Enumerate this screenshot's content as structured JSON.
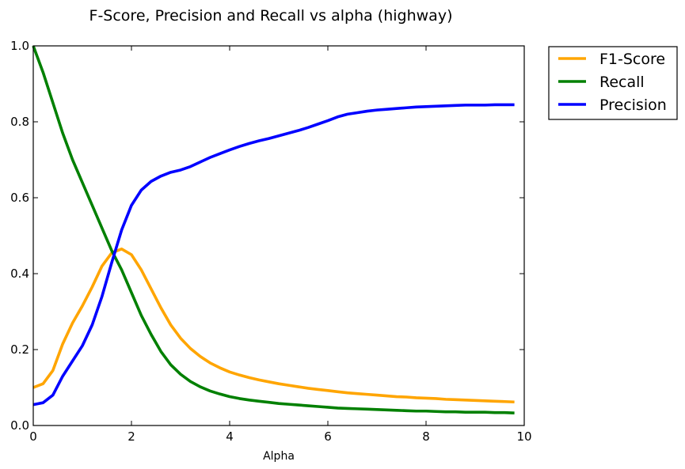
{
  "chart_data": {
    "type": "line",
    "title": "F-Score, Precision and Recall vs alpha (highway)",
    "xlabel": "Alpha",
    "ylabel": "",
    "xlim": [
      0,
      10
    ],
    "ylim": [
      0,
      1.0
    ],
    "xticks": [
      "0",
      "2",
      "4",
      "6",
      "8",
      "10"
    ],
    "yticks": [
      "0.0",
      "0.2",
      "0.4",
      "0.6",
      "0.8",
      "1.0"
    ],
    "grid": false,
    "legend_position": "outside-top-right",
    "x": [
      0.0,
      0.2,
      0.4,
      0.6,
      0.8,
      1.0,
      1.2,
      1.4,
      1.6,
      1.8,
      2.0,
      2.2,
      2.4,
      2.6,
      2.8,
      3.0,
      3.2,
      3.4,
      3.6,
      3.8,
      4.0,
      4.2,
      4.4,
      4.6,
      4.8,
      5.0,
      5.2,
      5.4,
      5.6,
      5.8,
      6.0,
      6.2,
      6.4,
      6.6,
      6.8,
      7.0,
      7.2,
      7.4,
      7.6,
      7.8,
      8.0,
      8.2,
      8.4,
      8.6,
      8.8,
      9.0,
      9.2,
      9.4,
      9.6,
      9.8
    ],
    "series": [
      {
        "name": "F1-Score",
        "color": "#ffa500",
        "values": [
          0.1,
          0.11,
          0.145,
          0.215,
          0.27,
          0.315,
          0.365,
          0.42,
          0.455,
          0.465,
          0.45,
          0.41,
          0.36,
          0.31,
          0.265,
          0.23,
          0.203,
          0.182,
          0.165,
          0.152,
          0.141,
          0.133,
          0.126,
          0.12,
          0.115,
          0.11,
          0.106,
          0.102,
          0.098,
          0.095,
          0.092,
          0.089,
          0.086,
          0.084,
          0.082,
          0.08,
          0.078,
          0.076,
          0.075,
          0.073,
          0.072,
          0.071,
          0.069,
          0.068,
          0.067,
          0.066,
          0.065,
          0.064,
          0.063,
          0.062
        ]
      },
      {
        "name": "Recall",
        "color": "#008000",
        "values": [
          1.0,
          0.93,
          0.85,
          0.77,
          0.7,
          0.64,
          0.58,
          0.52,
          0.46,
          0.41,
          0.35,
          0.29,
          0.24,
          0.195,
          0.16,
          0.135,
          0.116,
          0.102,
          0.091,
          0.083,
          0.076,
          0.071,
          0.067,
          0.064,
          0.061,
          0.058,
          0.056,
          0.054,
          0.052,
          0.05,
          0.048,
          0.046,
          0.045,
          0.044,
          0.043,
          0.042,
          0.041,
          0.04,
          0.039,
          0.038,
          0.038,
          0.037,
          0.036,
          0.036,
          0.035,
          0.035,
          0.035,
          0.034,
          0.034,
          0.033
        ]
      },
      {
        "name": "Precision",
        "color": "#0000ff",
        "values": [
          0.055,
          0.06,
          0.08,
          0.13,
          0.17,
          0.21,
          0.265,
          0.34,
          0.43,
          0.515,
          0.58,
          0.62,
          0.643,
          0.657,
          0.667,
          0.673,
          0.682,
          0.694,
          0.706,
          0.716,
          0.726,
          0.735,
          0.743,
          0.75,
          0.756,
          0.763,
          0.77,
          0.777,
          0.785,
          0.794,
          0.803,
          0.813,
          0.82,
          0.824,
          0.828,
          0.831,
          0.833,
          0.835,
          0.837,
          0.839,
          0.84,
          0.841,
          0.842,
          0.843,
          0.844,
          0.844,
          0.844,
          0.845,
          0.845,
          0.845
        ]
      }
    ]
  }
}
